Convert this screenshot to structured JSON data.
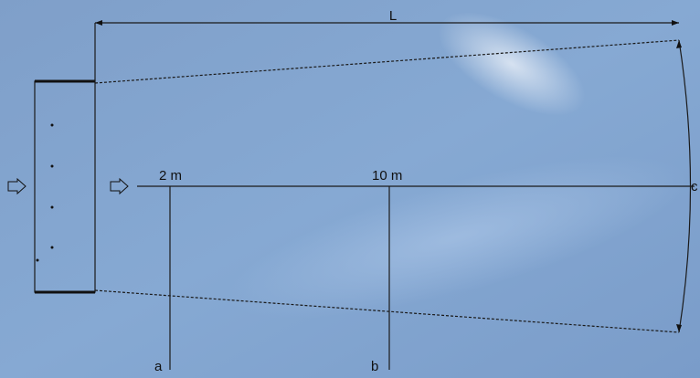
{
  "labels": {
    "length": "L",
    "near": "2 m",
    "far": "10 m",
    "section_a": "a",
    "section_b": "b",
    "section_c": "c"
  }
}
